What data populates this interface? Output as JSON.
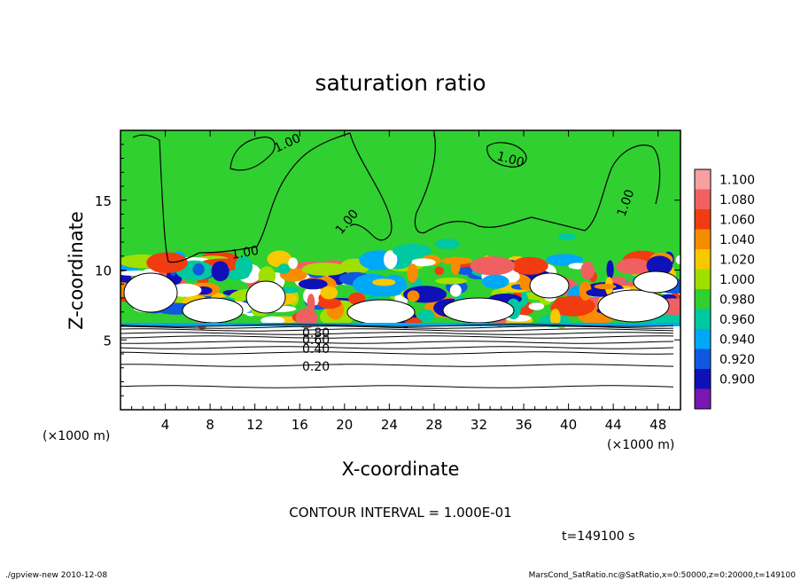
{
  "chart_data": {
    "type": "heatmap",
    "title": "saturation ratio",
    "xlabel": "X-coordinate",
    "ylabel": "Z-coordinate",
    "x_unit": "(×1000 m)",
    "z_unit": "(×1000 m)",
    "xlim": [
      0,
      50
    ],
    "ylim": [
      0,
      20
    ],
    "x_ticks": [
      4,
      8,
      12,
      16,
      20,
      24,
      28,
      32,
      36,
      40,
      44,
      48
    ],
    "y_ticks": [
      5,
      10,
      15
    ],
    "colorbar": {
      "levels": [
        "1.100",
        "1.080",
        "1.060",
        "1.040",
        "1.020",
        "1.000",
        "0.980",
        "0.960",
        "0.940",
        "0.920",
        "0.900"
      ],
      "colors": [
        "#f8a0a0",
        "#f06060",
        "#f03c10",
        "#f88c00",
        "#f8c800",
        "#a0e000",
        "#30d030",
        "#00c8a0",
        "#00a8f8",
        "#1058e0",
        "#1010b8",
        "#7818b0"
      ]
    },
    "contour_labels": [
      "1.00",
      "1.00",
      "1.00",
      "1.00",
      "1.00",
      "0.80",
      "0.60",
      "0.40",
      "0.20"
    ],
    "contour_interval": "CONTOUR INTERVAL = 1.000E-01",
    "time_label": "t=149100 s",
    "footer_left": "./gpview-new  2010-12-08",
    "footer_right": "MarsCond_SatRatio.nc@SatRatio,x=0:50000,z=0:20000,t=149100",
    "field_bands": [
      {
        "z_from": 0,
        "z_to": 6.0,
        "value": "below 0.90"
      },
      {
        "z_from": 6.0,
        "z_to": 10.5,
        "value": "mixed 0.90-1.10"
      },
      {
        "z_from": 10.5,
        "z_to": 20,
        "value": "1.000"
      }
    ]
  }
}
